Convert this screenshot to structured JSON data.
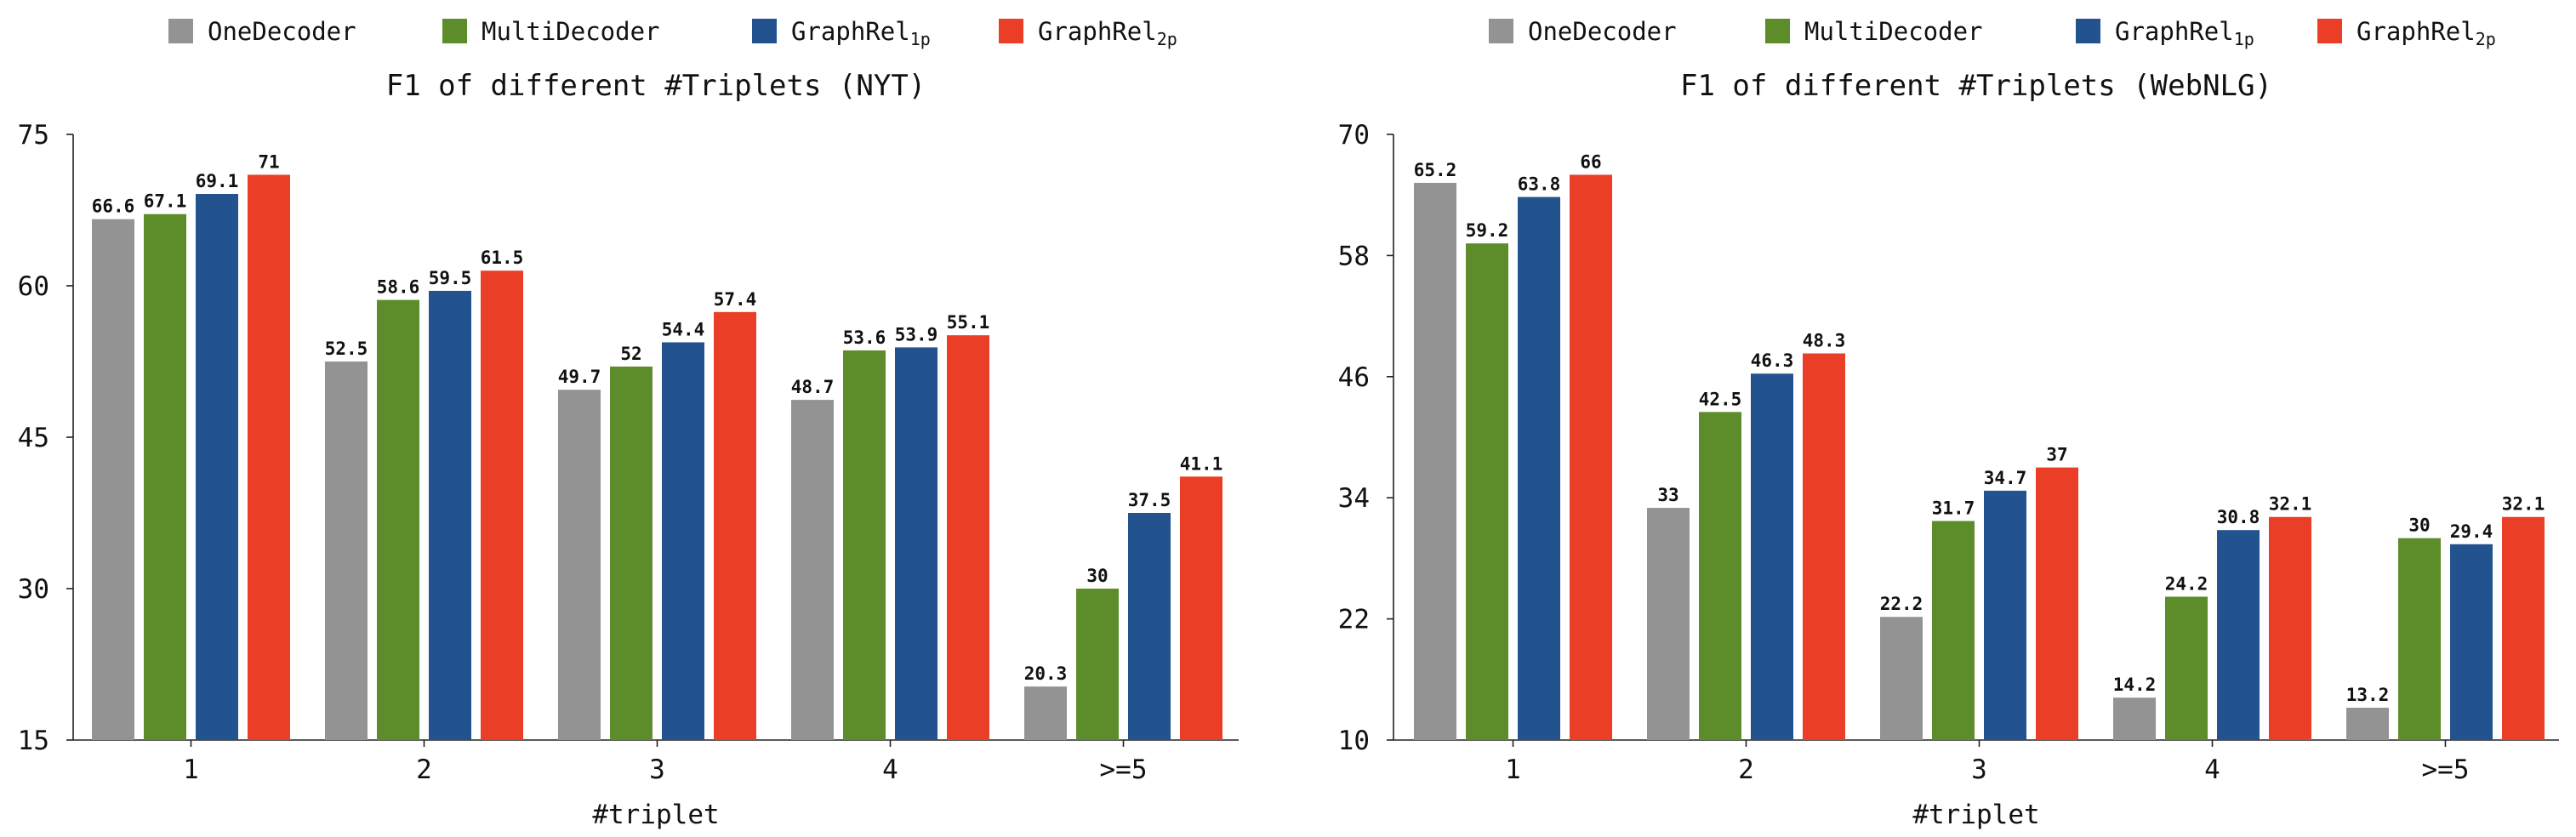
{
  "colors": {
    "OneDecoder": "#939393",
    "MultiDecoder": "#5d8c2a",
    "GraphRel1p": "#22538e",
    "GraphRel2p": "#ea3e27"
  },
  "legend": [
    {
      "key": "OneDecoder",
      "name": "OneDecoder",
      "sub": ""
    },
    {
      "key": "MultiDecoder",
      "name": "MultiDecoder",
      "sub": ""
    },
    {
      "key": "GraphRel1p",
      "name": "GraphRel",
      "sub": "1p"
    },
    {
      "key": "GraphRel2p",
      "name": "GraphRel",
      "sub": "2p"
    }
  ],
  "chart_data": [
    {
      "type": "bar",
      "title": "F1 of different #Triplets (NYT)",
      "xlabel": "#triplet",
      "ylabel": "",
      "ylim": [
        15,
        75
      ],
      "yticks": [
        15,
        30,
        45,
        60,
        75
      ],
      "categories": [
        "1",
        "2",
        "3",
        "4",
        ">=5"
      ],
      "series": [
        {
          "key": "OneDecoder",
          "values": [
            66.6,
            52.5,
            49.7,
            48.7,
            20.3
          ]
        },
        {
          "key": "MultiDecoder",
          "values": [
            67.1,
            58.6,
            52,
            53.6,
            30
          ]
        },
        {
          "key": "GraphRel1p",
          "values": [
            69.1,
            59.5,
            54.4,
            53.9,
            37.5
          ]
        },
        {
          "key": "GraphRel2p",
          "values": [
            71,
            61.5,
            57.4,
            55.1,
            41.1
          ]
        }
      ],
      "legend_position": "top"
    },
    {
      "type": "bar",
      "title": "F1 of different #Triplets (WebNLG)",
      "xlabel": "#triplet",
      "ylabel": "",
      "ylim": [
        10,
        70
      ],
      "yticks": [
        10,
        22,
        34,
        46,
        58,
        70
      ],
      "categories": [
        "1",
        "2",
        "3",
        "4",
        ">=5"
      ],
      "series": [
        {
          "key": "OneDecoder",
          "values": [
            65.2,
            33,
            22.2,
            14.2,
            13.2
          ]
        },
        {
          "key": "MultiDecoder",
          "values": [
            59.2,
            42.5,
            31.7,
            24.2,
            30
          ]
        },
        {
          "key": "GraphRel1p",
          "values": [
            63.8,
            46.3,
            34.7,
            30.8,
            29.4
          ]
        },
        {
          "key": "GraphRel2p",
          "values": [
            66,
            48.3,
            37,
            32.1,
            32.1
          ]
        }
      ],
      "legend_position": "top"
    }
  ]
}
